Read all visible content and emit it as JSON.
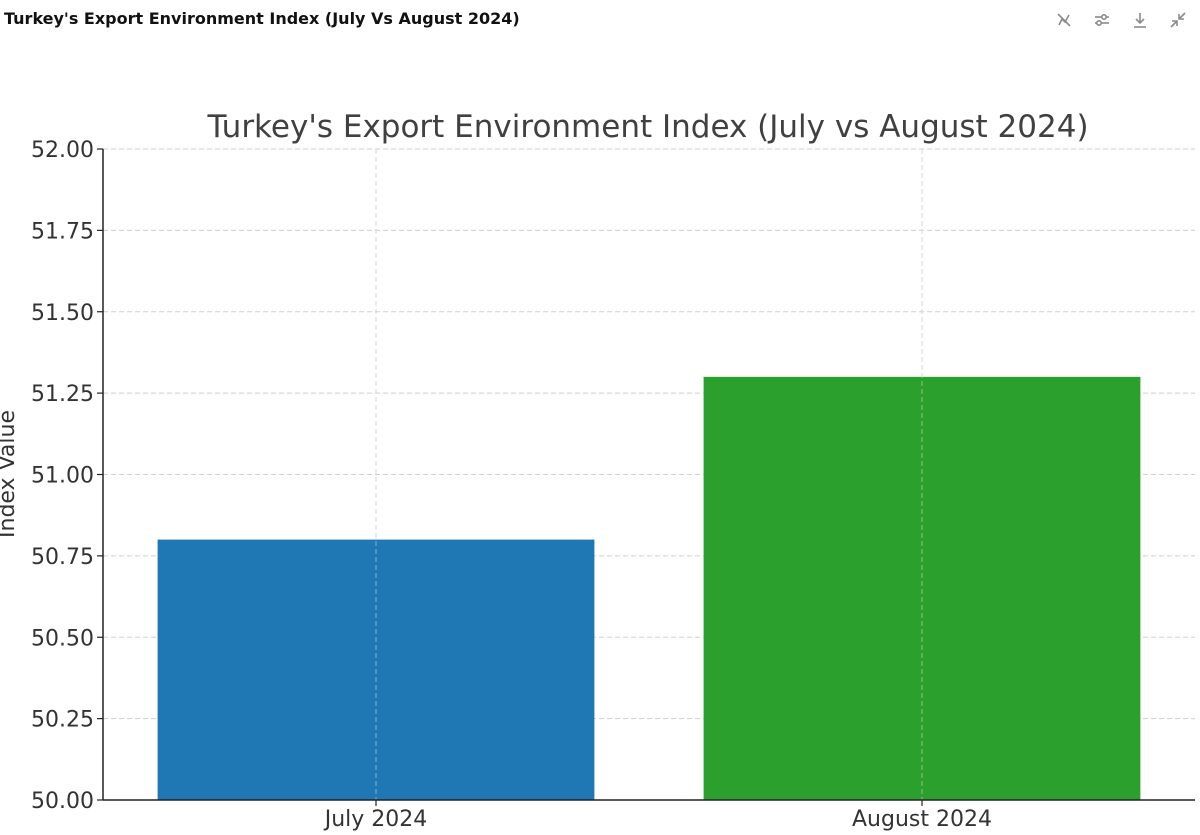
{
  "panel": {
    "title": "Turkey's Export Environment Index (July Vs August 2024)"
  },
  "toolbar": {
    "icons": [
      "hide-chart-icon",
      "settings-sliders-icon",
      "download-icon",
      "collapse-icon"
    ]
  },
  "chart_data": {
    "type": "bar",
    "title": "Turkey's Export Environment Index (July vs August 2024)",
    "xlabel": "",
    "ylabel": "Index Value",
    "categories": [
      "July 2024",
      "August 2024"
    ],
    "values": [
      50.8,
      51.3
    ],
    "colors": [
      "#1f77b4",
      "#2ca02c"
    ],
    "ylim": [
      50.0,
      52.0
    ],
    "yticks": [
      50.0,
      50.25,
      50.5,
      50.75,
      51.0,
      51.25,
      51.5,
      51.75,
      52.0
    ],
    "ytick_labels": [
      "50.00",
      "50.25",
      "50.50",
      "50.75",
      "51.00",
      "51.25",
      "51.50",
      "51.75",
      "52.00"
    ],
    "grid": true,
    "legend": "none"
  }
}
